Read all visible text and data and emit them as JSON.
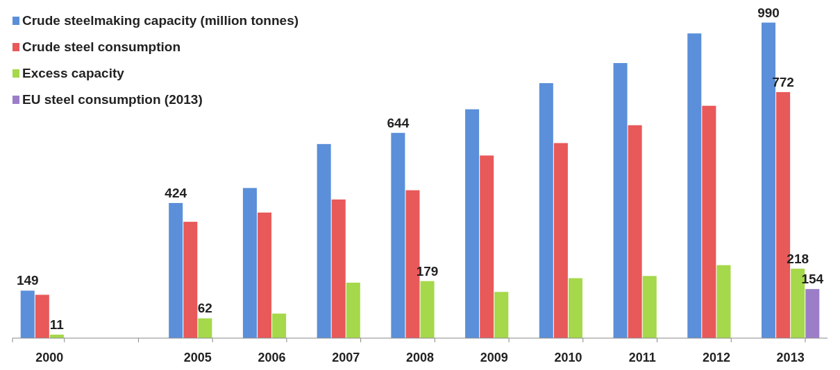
{
  "chart_data": {
    "type": "bar",
    "categories": [
      "2000",
      null,
      "2005",
      "2006",
      "2007",
      "2008",
      "2009",
      "2010",
      "2011",
      "2012",
      "2013"
    ],
    "ylim": [
      0,
      1000
    ],
    "legend": "top left",
    "grid": false,
    "tick_labels": "x",
    "series": [
      {
        "name": "Crude steelmaking capacity (million tonnes)",
        "color": "#5b8fd9",
        "values": [
          149,
          null,
          424,
          471,
          609,
          644,
          718,
          800,
          863,
          956,
          990
        ],
        "value_labels": [
          "149",
          null,
          "424",
          null,
          null,
          "644",
          null,
          null,
          null,
          null,
          "990"
        ]
      },
      {
        "name": "Crude steel consumption",
        "color": "#e8595a",
        "values": [
          136,
          null,
          365,
          394,
          435,
          464,
          573,
          612,
          668,
          729,
          772
        ],
        "value_labels": [
          null,
          null,
          null,
          null,
          null,
          null,
          null,
          null,
          null,
          null,
          "772"
        ]
      },
      {
        "name": "Excess capacity",
        "color": "#a5d84a",
        "values": [
          11,
          null,
          62,
          77,
          174,
          179,
          145,
          188,
          195,
          229,
          218
        ],
        "value_labels": [
          "11",
          null,
          "62",
          null,
          null,
          "179",
          null,
          null,
          null,
          null,
          "218"
        ]
      },
      {
        "name": "EU steel consumption (2013)",
        "color": "#9c7ec8",
        "values": [
          null,
          null,
          null,
          null,
          null,
          null,
          null,
          null,
          null,
          null,
          154
        ],
        "value_labels": [
          null,
          null,
          null,
          null,
          null,
          null,
          null,
          null,
          null,
          null,
          "154"
        ]
      }
    ]
  }
}
